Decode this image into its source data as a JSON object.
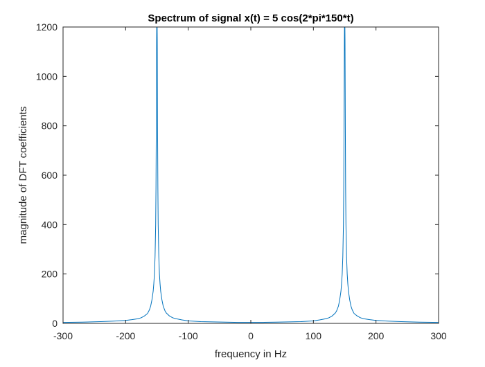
{
  "chart_data": {
    "type": "line",
    "title": "Spectrum of signal x(t) = 5 cos(2*pi*150*t)",
    "xlabel": "frequency in Hz",
    "ylabel": "magnitude of DFT coefficients",
    "xlim": [
      -300,
      300
    ],
    "ylim": [
      0,
      1200
    ],
    "xticks": [
      -300,
      -200,
      -100,
      0,
      100,
      200,
      300
    ],
    "yticks": [
      0,
      200,
      400,
      600,
      800,
      1000,
      1200
    ],
    "xtick_labels": [
      "-300",
      "-200",
      "-100",
      "0",
      "100",
      "200",
      "300"
    ],
    "ytick_labels": [
      "0",
      "200",
      "400",
      "600",
      "800",
      "1000",
      "1200"
    ],
    "grid": false,
    "line_color": "#0072BD",
    "series": [
      {
        "values_x": [
          -300,
          -270,
          -240,
          -220,
          -200,
          -190,
          -180,
          -175,
          -170,
          -165,
          -162,
          -160,
          -158,
          -156,
          -155,
          -154,
          -153,
          -152,
          -151.5,
          -151,
          -150.5,
          -150,
          -149.5,
          -149,
          -148.5,
          -148,
          -147,
          -146,
          -145,
          -144,
          -142,
          -140,
          -137,
          -135,
          -130,
          -125,
          -120,
          -110,
          -100,
          -80,
          -60,
          -40,
          -20,
          0,
          20,
          40,
          60,
          80,
          100,
          110,
          120,
          125,
          130,
          135,
          137,
          140,
          142,
          144,
          145,
          146,
          147,
          148,
          148.5,
          149,
          149.5,
          150,
          150.5,
          151,
          151.5,
          152,
          153,
          154,
          155,
          156,
          158,
          160,
          162,
          165,
          170,
          175,
          180,
          190,
          200,
          220,
          240,
          270,
          300
        ],
        "values_y": [
          4,
          5,
          7,
          9,
          12,
          15,
          19,
          23,
          30,
          40,
          55,
          70,
          95,
          130,
          160,
          200,
          270,
          400,
          550,
          800,
          1150,
          1300,
          1150,
          800,
          550,
          400,
          270,
          200,
          160,
          130,
          95,
          70,
          50,
          42,
          30,
          23,
          19,
          14,
          10,
          7,
          6,
          5,
          4,
          4,
          4,
          5,
          6,
          7,
          10,
          14,
          19,
          23,
          30,
          42,
          50,
          70,
          95,
          130,
          160,
          200,
          270,
          400,
          550,
          800,
          1150,
          1300,
          1150,
          800,
          550,
          400,
          270,
          200,
          160,
          130,
          95,
          70,
          55,
          40,
          30,
          23,
          19,
          15,
          12,
          9,
          7,
          5,
          4
        ]
      }
    ]
  }
}
